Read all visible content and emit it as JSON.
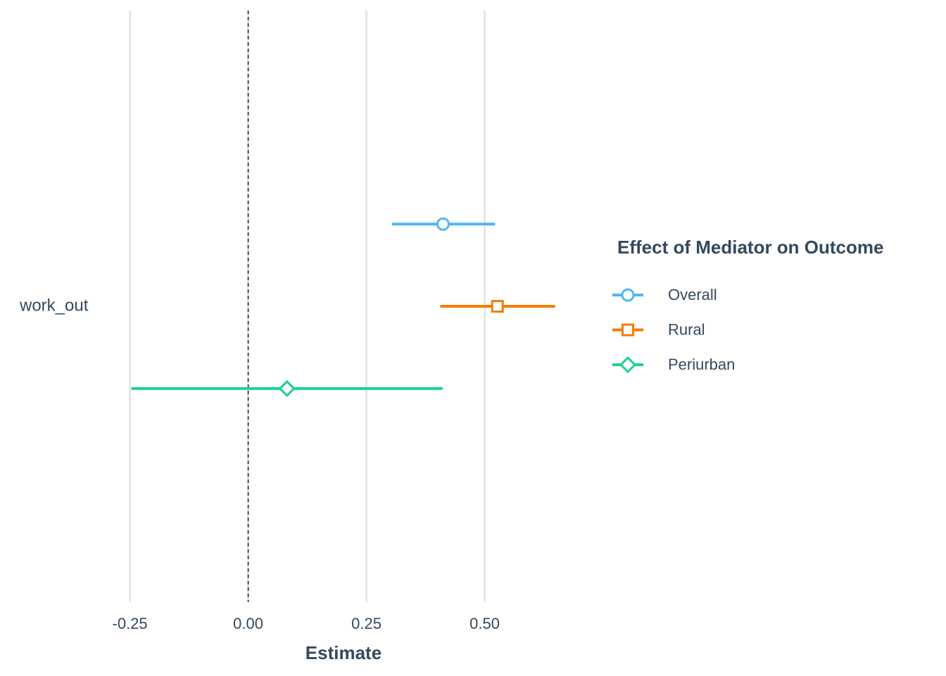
{
  "chart_data": {
    "type": "forest",
    "categories": [
      "work_out"
    ],
    "series": [
      {
        "name": "Overall",
        "color": "#4db8f2",
        "marker": "circle",
        "values": [
          0.412
        ],
        "lower": [
          0.304
        ],
        "upper": [
          0.522
        ]
      },
      {
        "name": "Rural",
        "color": "#f57c00",
        "marker": "square",
        "values": [
          0.527
        ],
        "lower": [
          0.406
        ],
        "upper": [
          0.649
        ]
      },
      {
        "name": "Periurban",
        "color": "#1fd08e",
        "marker": "diamond",
        "values": [
          0.082
        ],
        "lower": [
          -0.247
        ],
        "upper": [
          0.411
        ]
      }
    ],
    "xlabel": "Estimate",
    "legend_title": "Effect of Mediator on Outcome",
    "legend_position": "right",
    "xlim": [
      -0.3,
      0.7
    ],
    "xticks": [
      -0.25,
      {
        "value": 0,
        "label": "0.00"
      },
      0.25,
      {
        "value": 0.5,
        "label": "0.50"
      }
    ],
    "reference_line": 0,
    "grid": true
  }
}
